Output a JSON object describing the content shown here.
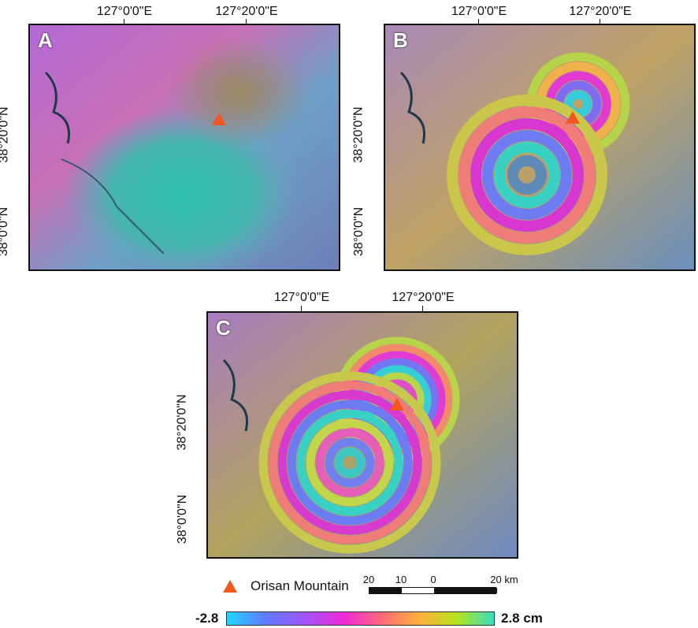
{
  "panels": [
    {
      "id": "A",
      "lon_labels": [
        "127°0'0\"E",
        "127°20'0\"E"
      ],
      "lat_labels": [
        "38°20'0\"N",
        "38°0'0\"N"
      ],
      "fringe_rings": 0
    },
    {
      "id": "B",
      "lon_labels": [
        "127°0'0\"E",
        "127°20'0\"E"
      ],
      "lat_labels": [
        "38°20'0\"N",
        "38°0'0\"N"
      ],
      "fringe_rings": 2
    },
    {
      "id": "C",
      "lon_labels": [
        "127°0'0\"E",
        "127°20'0\"E"
      ],
      "lat_labels": [
        "38°20'0\"N",
        "38°0'0\"N"
      ],
      "fringe_rings": 4
    }
  ],
  "legend": {
    "marker_label": "Orisan Mountain",
    "marker_color": "#f2571d",
    "scale_labels": [
      "20",
      "10",
      "0",
      "20 km"
    ]
  },
  "colorbar": {
    "min_label": "-2.8",
    "max_label": "2.8 cm",
    "colors": [
      "#22d5ff",
      "#5e7dff",
      "#9a57ff",
      "#f12ad4",
      "#ff6a7a",
      "#ffb03c",
      "#b5e21e",
      "#35e0c0"
    ]
  }
}
